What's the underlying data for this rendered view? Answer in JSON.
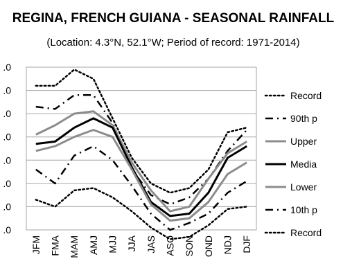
{
  "chart_data": {
    "type": "line",
    "title": "REGINA, FRENCH GUIANA - SEASONAL RAINFALL",
    "subtitle": "(Location: 4.3°N, 52.1°W; Period of record: 1971-2014)",
    "categories": [
      "JFM",
      "FMA",
      "MAM",
      "AMJ",
      "MJJ",
      "JJA",
      "JAS",
      "ASO",
      "SON",
      "OND",
      "NDJ",
      "DJF"
    ],
    "y_tick_labels": [
      ".0",
      ".0",
      ".0",
      ".0",
      ".0",
      ".0",
      ".0",
      ".0"
    ],
    "ylim": [
      0,
      7
    ],
    "grid": true,
    "legend_position": "right",
    "series": [
      {
        "name": "Record",
        "style": "dotted",
        "color": "#000000",
        "values": [
          6.2,
          6.2,
          6.9,
          6.5,
          4.8,
          3.1,
          2.0,
          1.6,
          1.8,
          2.6,
          4.2,
          4.4
        ]
      },
      {
        "name": "90th p",
        "style": "dashdot",
        "color": "#000000",
        "values": [
          5.3,
          5.2,
          5.8,
          5.8,
          4.6,
          2.6,
          1.5,
          1.1,
          1.4,
          2.2,
          3.4,
          4.3
        ]
      },
      {
        "name": "Upper",
        "style": "solid",
        "color": "#8c8c8c",
        "values": [
          4.1,
          4.5,
          5.0,
          5.1,
          4.5,
          2.9,
          1.7,
          0.8,
          1.0,
          2.2,
          3.3,
          3.8
        ]
      },
      {
        "name": "Media",
        "style": "solid",
        "color": "#000000",
        "values": [
          3.7,
          3.8,
          4.4,
          4.8,
          4.4,
          2.7,
          1.2,
          0.6,
          0.7,
          1.6,
          3.1,
          3.6
        ]
      },
      {
        "name": "Lower",
        "style": "solid",
        "color": "#8c8c8c",
        "values": [
          3.4,
          3.6,
          4.0,
          4.3,
          4.0,
          2.6,
          1.1,
          0.4,
          0.5,
          1.2,
          2.4,
          2.9
        ]
      },
      {
        "name": "10th p",
        "style": "dashdot",
        "color": "#000000",
        "values": [
          2.6,
          2.0,
          3.2,
          3.6,
          3.0,
          1.9,
          0.7,
          0.0,
          0.3,
          0.7,
          1.6,
          2.1
        ]
      },
      {
        "name": "Record",
        "style": "dotted",
        "color": "#000000",
        "values": [
          1.3,
          1.0,
          1.7,
          1.8,
          1.4,
          0.8,
          0.1,
          -0.4,
          -0.3,
          0.2,
          0.9,
          1.0
        ]
      }
    ]
  }
}
